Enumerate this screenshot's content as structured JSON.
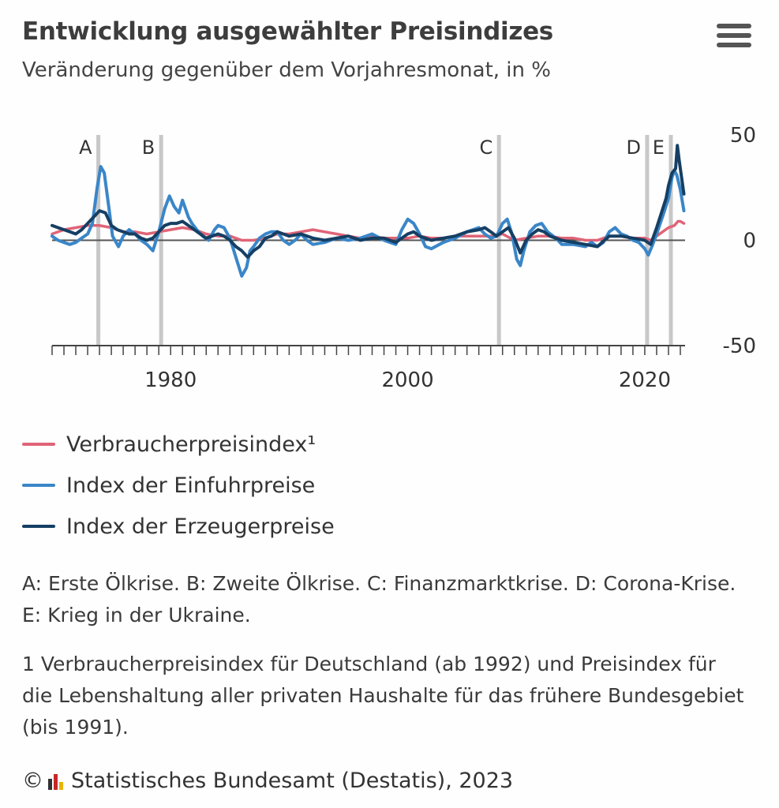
{
  "header": {
    "title": "Entwicklung ausgewählter Preisindizes",
    "subtitle": "Veränderung gegenüber dem Vorjahresmonat, in %"
  },
  "menu": {
    "icon": "hamburger-menu-icon"
  },
  "chart_data": {
    "type": "line",
    "title": "Entwicklung ausgewählter Preisindizes",
    "subtitle": "Veränderung gegenüber dem Vorjahresmonat, in %",
    "xlabel": "",
    "ylabel": "",
    "xlim": [
      1970,
      2023.4
    ],
    "ylim": [
      -50,
      50
    ],
    "x_ticks": [
      1980,
      2000,
      2020
    ],
    "y_ticks": [
      50,
      0,
      -50
    ],
    "y_axis_position": "right",
    "grid": false,
    "zero_line": true,
    "legend_position": "bottom",
    "markers": [
      {
        "label": "A",
        "x": 1973.9
      },
      {
        "label": "B",
        "x": 1979.2
      },
      {
        "label": "C",
        "x": 2007.7
      },
      {
        "label": "D",
        "x": 2020.2
      },
      {
        "label": "E",
        "x": 2022.2
      }
    ],
    "series": [
      {
        "name": "Verbraucherpreisindex¹",
        "color": "#e06477",
        "x": [
          1970,
          1971,
          1972,
          1973,
          1974,
          1975,
          1976,
          1977,
          1978,
          1979,
          1980,
          1981,
          1982,
          1983,
          1984,
          1985,
          1986,
          1987,
          1988,
          1989,
          1990,
          1991,
          1992,
          1993,
          1994,
          1995,
          1996,
          1997,
          1998,
          1999,
          2000,
          2001,
          2002,
          2003,
          2004,
          2005,
          2006,
          2007,
          2008,
          2009,
          2010,
          2011,
          2012,
          2013,
          2014,
          2015,
          2016,
          2017,
          2018,
          2019,
          2020,
          2020.5,
          2021,
          2021.5,
          2022,
          2022.5,
          2022.8,
          2023,
          2023.3
        ],
        "values": [
          3,
          5,
          6,
          7,
          7,
          6,
          4,
          4,
          3,
          4,
          5,
          6,
          5,
          3,
          2,
          2,
          0,
          0,
          1,
          3,
          3,
          4,
          5,
          4,
          3,
          2,
          1,
          2,
          1,
          1,
          1,
          2,
          1,
          1,
          2,
          2,
          2,
          2,
          3,
          0,
          1,
          2,
          2,
          1,
          1,
          0,
          0,
          2,
          2,
          1,
          1,
          0,
          2,
          4,
          6,
          7,
          9,
          9,
          8
        ]
      },
      {
        "name": "Index der Einfuhrpreise",
        "color": "#3a86c8",
        "x": [
          1970,
          1970.5,
          1971,
          1971.5,
          1972,
          1972.5,
          1973,
          1973.4,
          1973.8,
          1974.1,
          1974.4,
          1974.8,
          1975.1,
          1975.6,
          1976,
          1976.5,
          1977,
          1977.5,
          1978,
          1978.5,
          1979,
          1979.5,
          1979.9,
          1980.3,
          1980.7,
          1981,
          1981.5,
          1981.8,
          1982.2,
          1982.7,
          1983.2,
          1983.7,
          1984,
          1984.5,
          1985,
          1985.5,
          1986,
          1986.4,
          1986.7,
          1987,
          1987.5,
          1988,
          1988.5,
          1989,
          1989.5,
          1990,
          1990.5,
          1991,
          1991.5,
          1992,
          1993,
          1994,
          1995,
          1996,
          1997,
          1998,
          1999,
          1999.5,
          2000,
          2000.5,
          2001,
          2001.5,
          2002,
          2003,
          2004,
          2005,
          2005.5,
          2006,
          2006.5,
          2007,
          2007.5,
          2008,
          2008.4,
          2008.8,
          2009.2,
          2009.5,
          2009.8,
          2010.3,
          2010.8,
          2011.3,
          2011.8,
          2012.5,
          2013,
          2014,
          2015,
          2015.5,
          2016,
          2016.5,
          2017,
          2017.5,
          2018,
          2018.5,
          2019,
          2019.5,
          2020,
          2020.3,
          2020.6,
          2021,
          2021.3,
          2021.6,
          2022,
          2022.3,
          2022.5,
          2022.7,
          2023,
          2023.3
        ],
        "values": [
          2,
          0,
          -1,
          -2,
          -1,
          1,
          3,
          8,
          25,
          35,
          32,
          15,
          2,
          -3,
          2,
          5,
          3,
          0,
          -2,
          -5,
          4,
          15,
          21,
          16,
          13,
          19,
          11,
          8,
          5,
          2,
          0,
          5,
          7,
          6,
          1,
          -8,
          -17,
          -13,
          -5,
          -3,
          1,
          3,
          4,
          4,
          0,
          -2,
          0,
          3,
          0,
          -2,
          -1,
          1,
          0,
          1,
          3,
          0,
          -2,
          5,
          10,
          8,
          3,
          -3,
          -4,
          -1,
          1,
          4,
          5,
          6,
          3,
          1,
          2,
          8,
          10,
          3,
          -9,
          -12,
          -5,
          4,
          7,
          8,
          4,
          1,
          -2,
          -2,
          -3,
          -1,
          -3,
          -1,
          4,
          6,
          3,
          2,
          0,
          -1,
          -4,
          -7,
          -3,
          3,
          8,
          13,
          20,
          30,
          33,
          31,
          24,
          14
        ]
      },
      {
        "name": "Index der Erzeugerpreise",
        "color": "#163f63",
        "x": [
          1970,
          1970.5,
          1971,
          1971.5,
          1972,
          1972.5,
          1973,
          1973.5,
          1974,
          1974.5,
          1975,
          1975.5,
          1976,
          1976.5,
          1977,
          1977.5,
          1978,
          1978.5,
          1979,
          1979.5,
          1980,
          1980.5,
          1981,
          1981.5,
          1982,
          1982.5,
          1983,
          1983.5,
          1984,
          1984.5,
          1985,
          1985.5,
          1986,
          1986.5,
          1987,
          1987.5,
          1988,
          1988.5,
          1989,
          1990,
          1991,
          1992,
          1993,
          1994,
          1995,
          1996,
          1997,
          1998,
          1999,
          2000,
          2000.5,
          2001,
          2002,
          2003,
          2004,
          2005,
          2006,
          2006.5,
          2007,
          2007.5,
          2008,
          2008.5,
          2009,
          2009.5,
          2010,
          2010.5,
          2011,
          2011.5,
          2012,
          2013,
          2014,
          2015,
          2016,
          2017,
          2018,
          2019,
          2020,
          2020.5,
          2021,
          2021.4,
          2021.8,
          2022,
          2022.3,
          2022.6,
          2022.75,
          2022.9,
          2023.1,
          2023.3
        ],
        "values": [
          7,
          6,
          5,
          4,
          3,
          5,
          8,
          11,
          14,
          13,
          7,
          5,
          4,
          3,
          3,
          1,
          0,
          1,
          4,
          7,
          8,
          8,
          9,
          7,
          5,
          3,
          1,
          2,
          3,
          2,
          0,
          -3,
          -5,
          -8,
          -5,
          -3,
          1,
          2,
          4,
          2,
          3,
          1,
          0,
          1,
          2,
          0,
          1,
          1,
          -1,
          3,
          4,
          2,
          0,
          1,
          2,
          4,
          5,
          6,
          4,
          2,
          4,
          6,
          1,
          -6,
          0,
          3,
          5,
          4,
          2,
          0,
          -1,
          -2,
          -3,
          2,
          2,
          1,
          0,
          -2,
          6,
          13,
          20,
          26,
          32,
          34,
          45,
          38,
          30,
          22
        ]
      }
    ]
  },
  "notes": {
    "markers_text": "A: Erste Ölkrise. B: Zweite Ölkrise. C: Finanzmarktkrise. D: Corona-Krise. E: Krieg in der Ukraine.",
    "footnote": "1 Verbraucherpreisindex für Deutschland (ab 1992) und Preisindex für die Lebenshaltung aller privaten Haushalte für das frühere Bundesgebiet (bis 1991)."
  },
  "credits": {
    "copyright": "©",
    "logo_icon": "destatis-logo-icon",
    "text": "Statistisches Bundesamt (Destatis), 2023"
  }
}
